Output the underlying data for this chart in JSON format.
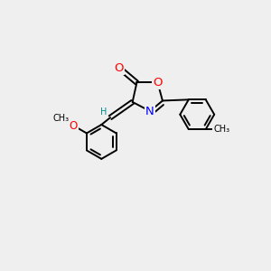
{
  "bg_color": "#efefef",
  "bond_color": "#000000",
  "bond_width": 1.4,
  "dbo": 0.18,
  "atom_colors": {
    "O": "#ff0000",
    "N": "#0000ff",
    "C": "#000000",
    "H": "#008b8b"
  },
  "font_size": 8.5,
  "fig_size": [
    3.0,
    3.0
  ],
  "dpi": 100,
  "xlim": [
    0,
    10
  ],
  "ylim": [
    0,
    10
  ]
}
